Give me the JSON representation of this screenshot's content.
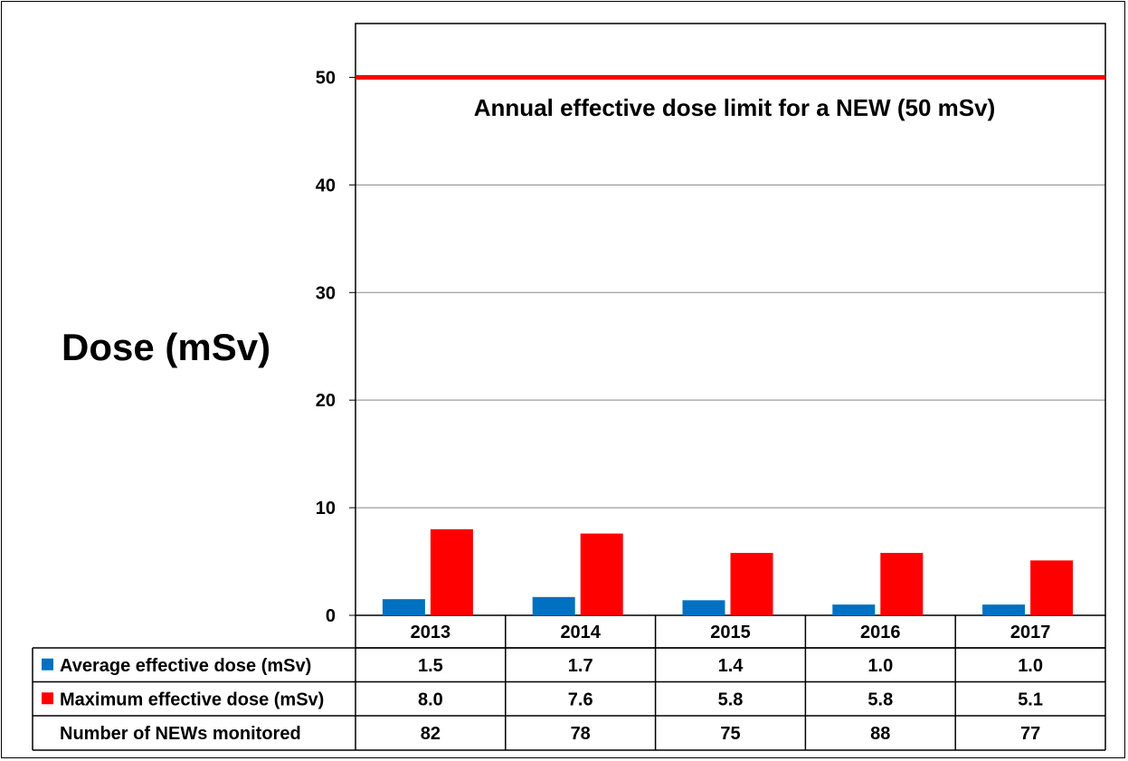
{
  "chart_data": {
    "type": "bar",
    "ylabel": "Dose (mSv)",
    "ylim": [
      0,
      55
    ],
    "yticks": [
      0,
      10,
      20,
      30,
      40,
      50
    ],
    "grid": true,
    "categories": [
      "2013",
      "2014",
      "2015",
      "2016",
      "2017"
    ],
    "series": [
      {
        "name": "Average effective dose (mSv)",
        "color": "#0070C0",
        "values": [
          1.5,
          1.7,
          1.4,
          1.0,
          1.0
        ]
      },
      {
        "name": "Maximum effective dose (mSv)",
        "color": "#FF0000",
        "values": [
          8.0,
          7.6,
          5.8,
          5.8,
          5.1
        ]
      }
    ],
    "reference_line": {
      "value": 50,
      "color": "#FF0000",
      "label": "Annual effective dose limit for a NEW (50 mSv)"
    },
    "table": {
      "rows": [
        {
          "label": "Average effective dose (mSv)",
          "values": [
            "1.5",
            "1.7",
            "1.4",
            "1.0",
            "1.0"
          ],
          "marker_color": "#0070C0"
        },
        {
          "label": "Maximum effective dose (mSv)",
          "values": [
            "8.0",
            "7.6",
            "5.8",
            "5.8",
            "5.1"
          ],
          "marker_color": "#FF0000"
        },
        {
          "label": "Number of NEWs monitored",
          "values": [
            "82",
            "78",
            "75",
            "88",
            "77"
          ],
          "marker_color": ""
        }
      ]
    }
  }
}
